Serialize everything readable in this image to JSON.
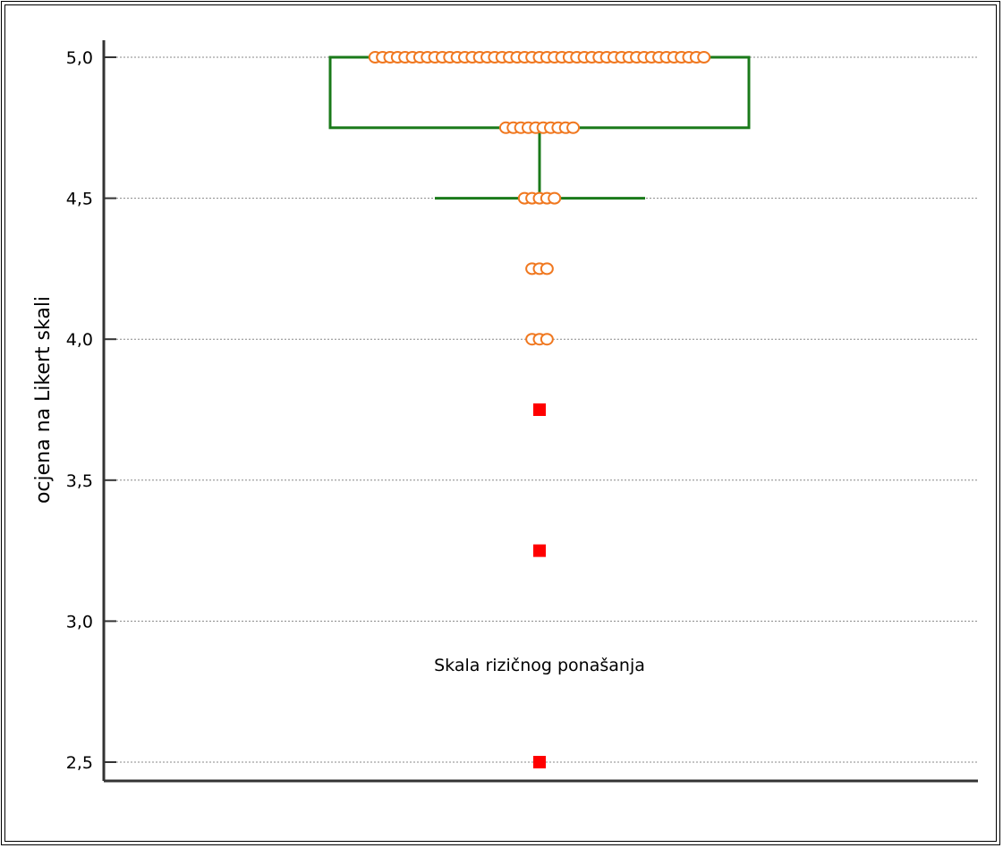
{
  "chart_data": {
    "type": "box",
    "ylabel": "ocjena na Likert skali",
    "xlabel": "",
    "categories": [
      "Skala rizičnog ponašanja"
    ],
    "ylim": [
      2.45,
      5.06
    ],
    "yticks": [
      2.5,
      3.0,
      3.5,
      4.0,
      4.5,
      5.0
    ],
    "ytick_labels": [
      "2,5",
      "3,0",
      "3,5",
      "4,0",
      "4,5",
      "5,0"
    ],
    "grid": "horizontal dotted",
    "box": {
      "q1": 4.75,
      "median": 5.0,
      "q3": 5.0,
      "whisker_low": 4.5,
      "whisker_high": 5.0
    },
    "points": [
      {
        "y": 5.0,
        "count": 45
      },
      {
        "y": 4.75,
        "count": 10
      },
      {
        "y": 4.5,
        "count": 5
      },
      {
        "y": 4.25,
        "count": 3
      },
      {
        "y": 4.0,
        "count": 3
      }
    ],
    "outliers": [
      3.75,
      3.25,
      2.5
    ],
    "colors": {
      "box": "#1a7a1a",
      "points": "#f07820",
      "outliers": "#ff0000",
      "axis": "#333333",
      "grid": "#888888"
    }
  }
}
